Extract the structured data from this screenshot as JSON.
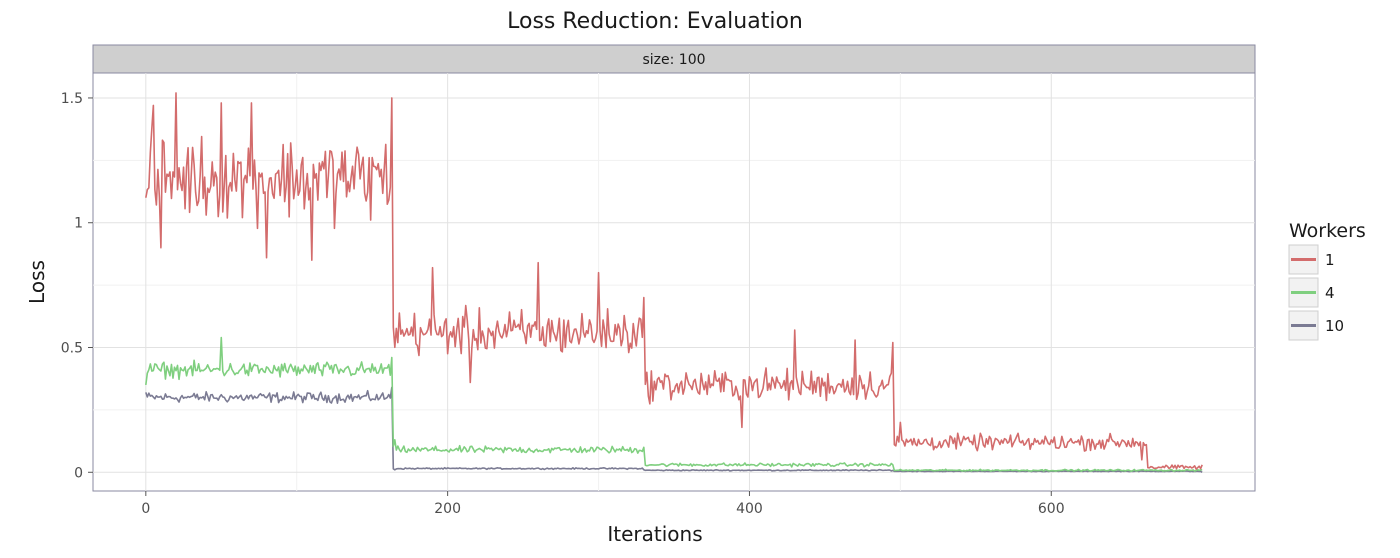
{
  "chart_data": {
    "type": "line",
    "title": "Loss Reduction: Evaluation",
    "facet_label": "size: 100",
    "xlabel": "Iterations",
    "ylabel": "Loss",
    "xlim": [
      -35,
      735
    ],
    "ylim": [
      -0.075,
      1.6
    ],
    "x_ticks": [
      0,
      200,
      400,
      600
    ],
    "x_tick_labels": [
      "0",
      "200",
      "400",
      "600"
    ],
    "y_ticks": [
      0,
      0.5,
      1,
      1.5
    ],
    "y_tick_labels": [
      "0",
      "0.5",
      "1",
      "1.5"
    ],
    "grid": true,
    "legend": {
      "title": "Workers",
      "position": "right"
    },
    "x_range": [
      0,
      700
    ],
    "series": [
      {
        "name": "1",
        "color": "#d36c6c",
        "segments": [
          {
            "x_start": 0,
            "x_end": 163,
            "mean": 1.18,
            "spread": 0.24
          },
          {
            "x_start": 164,
            "x_end": 330,
            "mean": 0.56,
            "spread": 0.13
          },
          {
            "x_start": 331,
            "x_end": 495,
            "mean": 0.35,
            "spread": 0.09
          },
          {
            "x_start": 496,
            "x_end": 663,
            "mean": 0.12,
            "spread": 0.045
          },
          {
            "x_start": 664,
            "x_end": 700,
            "mean": 0.02,
            "spread": 0.012
          }
        ],
        "points": [
          [
            0,
            1.1
          ],
          [
            5,
            1.47
          ],
          [
            10,
            0.9
          ],
          [
            20,
            1.52
          ],
          [
            50,
            1.48
          ],
          [
            70,
            1.48
          ],
          [
            80,
            0.86
          ],
          [
            110,
            0.85
          ],
          [
            163,
            1.5
          ],
          [
            170,
            0.57
          ],
          [
            190,
            0.82
          ],
          [
            215,
            0.36
          ],
          [
            260,
            0.84
          ],
          [
            300,
            0.8
          ],
          [
            330,
            0.7
          ],
          [
            340,
            0.38
          ],
          [
            395,
            0.18
          ],
          [
            430,
            0.57
          ],
          [
            470,
            0.53
          ],
          [
            495,
            0.52
          ],
          [
            500,
            0.2
          ],
          [
            660,
            0.05
          ],
          [
            700,
            0.03
          ]
        ]
      },
      {
        "name": "4",
        "color": "#7fcf7f",
        "segments": [
          {
            "x_start": 0,
            "x_end": 163,
            "mean": 0.41,
            "spread": 0.045
          },
          {
            "x_start": 164,
            "x_end": 330,
            "mean": 0.09,
            "spread": 0.02
          },
          {
            "x_start": 331,
            "x_end": 495,
            "mean": 0.03,
            "spread": 0.01
          },
          {
            "x_start": 496,
            "x_end": 700,
            "mean": 0.008,
            "spread": 0.005
          }
        ],
        "points": [
          [
            0,
            0.35
          ],
          [
            50,
            0.54
          ],
          [
            163,
            0.46
          ],
          [
            165,
            0.13
          ],
          [
            330,
            0.1
          ],
          [
            335,
            0.03
          ],
          [
            495,
            0.03
          ],
          [
            700,
            0.01
          ]
        ]
      },
      {
        "name": "10",
        "color": "#7b7b93",
        "segments": [
          {
            "x_start": 0,
            "x_end": 163,
            "mean": 0.3,
            "spread": 0.03
          },
          {
            "x_start": 164,
            "x_end": 330,
            "mean": 0.015,
            "spread": 0.004
          },
          {
            "x_start": 331,
            "x_end": 495,
            "mean": 0.008,
            "spread": 0.003
          },
          {
            "x_start": 496,
            "x_end": 700,
            "mean": 0.004,
            "spread": 0.002
          }
        ],
        "points": [
          [
            0,
            0.32
          ],
          [
            163,
            0.34
          ],
          [
            165,
            0.01
          ],
          [
            330,
            0.01
          ],
          [
            700,
            0.0
          ]
        ]
      }
    ]
  }
}
